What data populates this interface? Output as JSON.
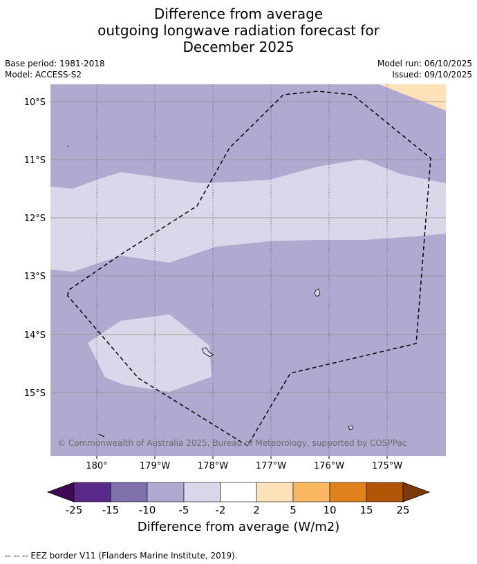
{
  "title": {
    "line1": "Difference from average",
    "line2": "outgoing longwave radiation forecast for",
    "line3": "December 2025"
  },
  "meta": {
    "base_period": "Base period: 1981-2018",
    "model": "Model: ACCESS-S2",
    "model_run": "Model run: 06/10/2025",
    "issued": "Issued: 09/10/2025"
  },
  "map": {
    "lat_labels": [
      "10°S",
      "11°S",
      "12°S",
      "13°S",
      "14°S",
      "15°S"
    ],
    "lon_labels": [
      "180°",
      "179°W",
      "178°W",
      "177°W",
      "176°W",
      "175°W"
    ],
    "copyright": "© Commonwealth of Australia 2025, Bureau of Meteorology, supported by COSPPac"
  },
  "colorbar": {
    "ticks": [
      "-25",
      "-15",
      "-10",
      "-5",
      "-2",
      "2",
      "5",
      "10",
      "15",
      "25"
    ],
    "colors": [
      "#3f0a54",
      "#5a2a8a",
      "#7f6fab",
      "#b0aad1",
      "#d8d8ea",
      "#ffffff",
      "#fde1b8",
      "#fbb762",
      "#e0821b",
      "#b05606",
      "#7a3b09"
    ],
    "title": "Difference from average (W/m2)"
  },
  "footer": {
    "eez_note": "--  --  -- EEZ border V11 (Flanders Marine Institute, 2019)."
  }
}
